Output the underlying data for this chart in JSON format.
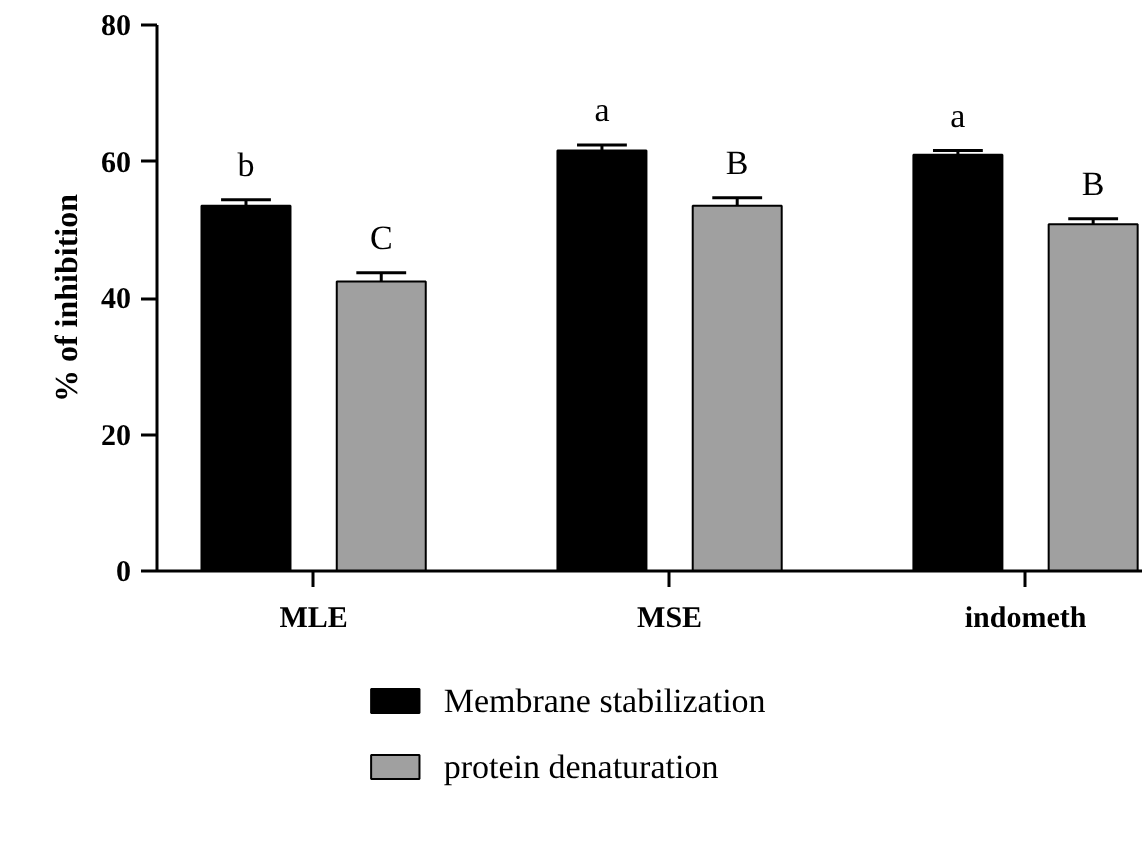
{
  "chart_data": {
    "type": "bar",
    "ylabel": "% of inhibition",
    "categories": [
      "MLE",
      "MSE",
      "indometh"
    ],
    "series": [
      {
        "name": "Membrane stabilization",
        "color": "#000000",
        "values": [
          53.5,
          61.6,
          61.0
        ],
        "errors": [
          [
            53.5,
            54.4
          ],
          [
            61.6,
            62.4
          ],
          [
            61.0,
            61.6
          ]
        ]
      },
      {
        "name": "protein denaturation",
        "color": "#a0a0a0",
        "values": [
          42.4,
          53.5,
          50.8
        ],
        "errors": [
          [
            42.4,
            43.7
          ],
          [
            53.5,
            54.7
          ],
          [
            50.8,
            51.6
          ]
        ]
      }
    ],
    "ylim": [
      0,
      80
    ],
    "yticks": [
      0,
      20,
      40,
      60,
      80
    ],
    "grid": false,
    "legend": "bottom",
    "annotations": [
      "b",
      "C",
      "a",
      "B",
      "a",
      "B"
    ]
  }
}
